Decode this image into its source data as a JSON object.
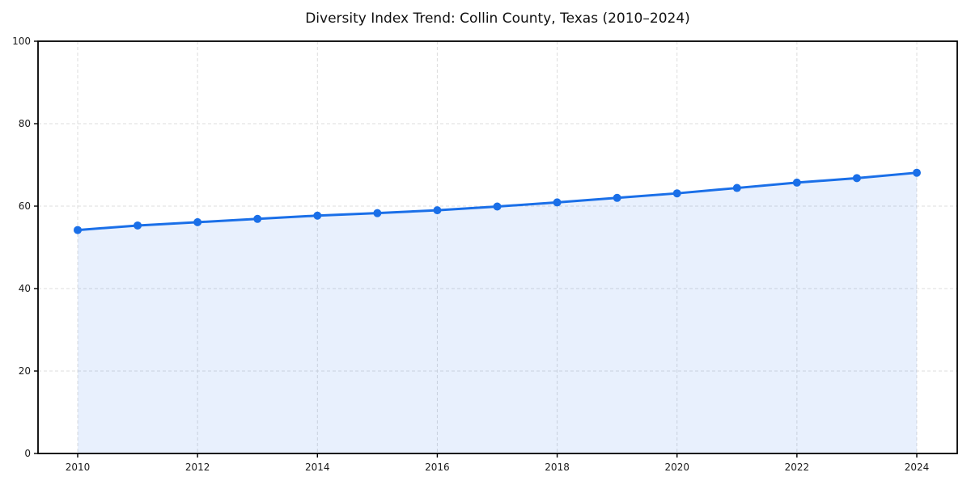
{
  "page": {
    "background_color": "#ffffff"
  },
  "chart_data": {
    "type": "line",
    "title": "Diversity Index Trend: Collin County, Texas (2010–2024)",
    "xlabel": "",
    "ylabel": "",
    "x": [
      2010,
      2011,
      2012,
      2013,
      2014,
      2015,
      2016,
      2017,
      2018,
      2019,
      2020,
      2021,
      2022,
      2023,
      2024
    ],
    "series": [
      {
        "name": "Diversity Index",
        "values": [
          54.2,
          55.3,
          56.1,
          56.9,
          57.7,
          58.3,
          59.0,
          59.9,
          60.9,
          62.0,
          63.1,
          64.4,
          65.7,
          66.8,
          68.1
        ]
      }
    ],
    "ylim": [
      0,
      100
    ],
    "yticks": [
      0,
      20,
      40,
      60,
      80,
      100
    ],
    "xticks": [
      2010,
      2012,
      2014,
      2016,
      2018,
      2020,
      2022,
      2024
    ],
    "grid": true,
    "grid_style": "dashed",
    "legend": "none",
    "marker": "circle",
    "colors": {
      "line": "#1a6fe8",
      "marker": "#1a6fe8",
      "area_fill": "#1a6fe8",
      "area_fill_opacity": 0.1,
      "grid": "#dcdcdc",
      "spine": "#000000",
      "tick_label": "#1a1a1a",
      "title": "#111111"
    }
  }
}
